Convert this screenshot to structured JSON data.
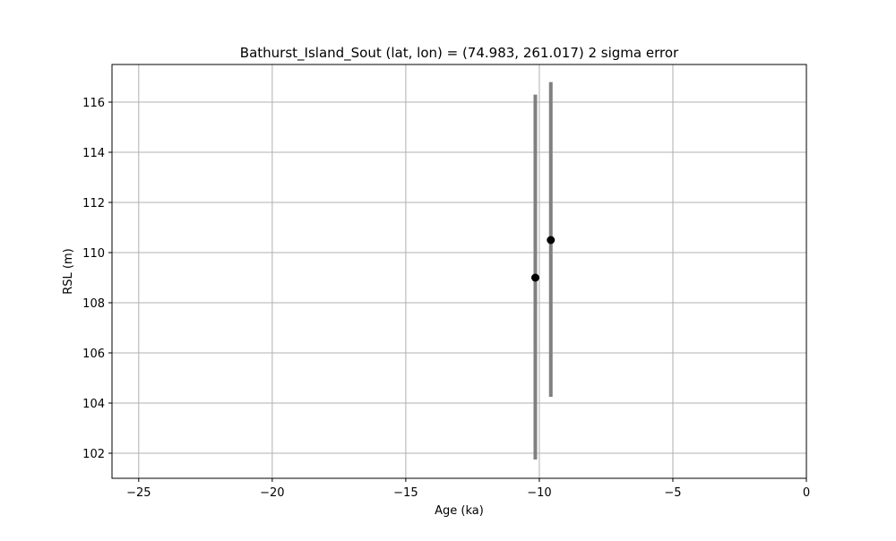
{
  "chart_data": {
    "type": "scatter",
    "title": "Bathurst_Island_Sout (lat, lon) = (74.983, 261.017)  2 sigma error",
    "xlabel": "Age (ka)",
    "ylabel": "RSL (m)",
    "xlim": [
      -26,
      0
    ],
    "ylim": [
      101,
      117.5
    ],
    "xticks": [
      -25,
      -20,
      -15,
      -10,
      -5,
      0
    ],
    "xtick_labels": [
      "−25",
      "−20",
      "−15",
      "−10",
      "−5",
      "0"
    ],
    "yticks": [
      102,
      104,
      106,
      108,
      110,
      112,
      114,
      116
    ],
    "ytick_labels": [
      "102",
      "104",
      "106",
      "108",
      "110",
      "112",
      "114",
      "116"
    ],
    "grid": true,
    "legend": false,
    "points": [
      {
        "x": -10.15,
        "y": 109.0,
        "y_low": 101.75,
        "y_high": 116.3
      },
      {
        "x": -9.57,
        "y": 110.5,
        "y_low": 104.25,
        "y_high": 116.8
      }
    ],
    "colors": {
      "marker": "#000000",
      "errorbar": "#808080",
      "grid": "#b0b0b0",
      "axes": "#000000"
    }
  }
}
